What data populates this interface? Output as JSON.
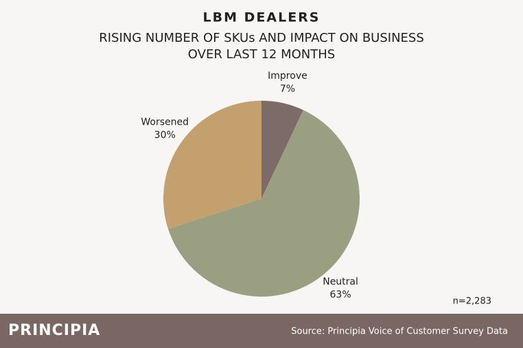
{
  "chart_data": {
    "type": "pie",
    "title": "LBM DEALERS",
    "subtitle": [
      "RISING NUMBER OF SKUs AND IMPACT ON BUSINESS",
      "OVER LAST 12 MONTHS"
    ],
    "categories": [
      "Improve",
      "Neutral",
      "Worsened"
    ],
    "values": [
      7,
      63,
      30
    ],
    "value_labels": [
      "7%",
      "63%",
      "30%"
    ],
    "colors": [
      "#7d6b69",
      "#9a9f81",
      "#c3a06d"
    ],
    "note": "n=2,283"
  },
  "footer": {
    "brand": "PRINCIPIA",
    "source": "Source: Principia Voice of Customer Survey Data"
  }
}
